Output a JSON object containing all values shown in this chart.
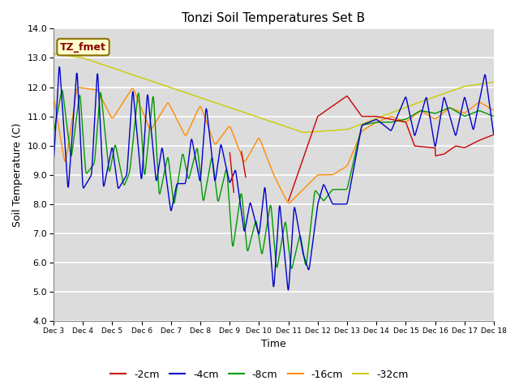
{
  "title": "Tonzi Soil Temperatures Set B",
  "xlabel": "Time",
  "ylabel": "Soil Temperature (C)",
  "ylim": [
    4.0,
    14.0
  ],
  "yticks": [
    4.0,
    5.0,
    6.0,
    7.0,
    8.0,
    9.0,
    10.0,
    11.0,
    12.0,
    13.0,
    14.0
  ],
  "annotation_label": "TZ_fmet",
  "annotation_color": "#8B0000",
  "annotation_bg": "#FFFFCC",
  "background_color": "#DCDCDC",
  "grid_color": "white",
  "series": {
    "-2cm": {
      "color": "#CC0000",
      "lw": 1.0
    },
    "-4cm": {
      "color": "#0000CC",
      "lw": 1.0
    },
    "-8cm": {
      "color": "#009900",
      "lw": 1.0
    },
    "-16cm": {
      "color": "#FF8C00",
      "lw": 1.0
    },
    "-32cm": {
      "color": "#CCCC00",
      "lw": 1.0
    }
  },
  "xtick_labels": [
    "Dec 3",
    "Dec 4",
    "Dec 5",
    "Dec 6",
    "Dec 7",
    "Dec 8",
    "Dec 9",
    "Dec 10",
    "Dec 11",
    "Dec 12",
    "Dec 13",
    "Dec 14",
    "Dec 15",
    "Dec 16",
    "Dec 17",
    "Dec 18"
  ],
  "legend_labels": [
    "-2cm",
    "-4cm",
    "-8cm",
    "-16cm",
    "-32cm"
  ],
  "legend_colors": [
    "#CC0000",
    "#0000CC",
    "#009900",
    "#FF8C00",
    "#CCCC00"
  ]
}
